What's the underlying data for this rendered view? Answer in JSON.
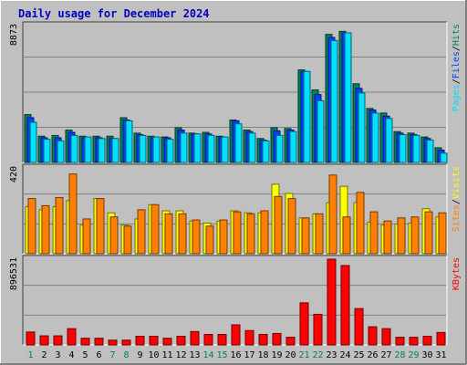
{
  "colors": {
    "background": "#C0C0C0",
    "panel": "#C0C0C0",
    "title": "#0000C0",
    "hits": "#00805C",
    "files": "#0040FF",
    "pages": "#00E0FF",
    "visits": "#FFFF00",
    "sites": "#FF8000",
    "kbytes": "#FF0000",
    "weekend_day": "#00805C",
    "weekday": "#000000"
  },
  "chart_data": {
    "type": "bar",
    "title": "Daily usage for December 2024",
    "categories": [
      "1",
      "2",
      "3",
      "4",
      "5",
      "6",
      "7",
      "8",
      "9",
      "10",
      "11",
      "12",
      "13",
      "14",
      "15",
      "16",
      "17",
      "18",
      "19",
      "20",
      "21",
      "22",
      "23",
      "24",
      "25",
      "26",
      "27",
      "28",
      "29",
      "30",
      "31"
    ],
    "weekend_days": [
      1,
      7,
      8,
      14,
      15,
      21,
      22,
      28,
      29
    ],
    "panels": [
      {
        "id": "hits",
        "ymax_label": "8873",
        "ymax": 8873,
        "legend": [
          {
            "text": "Pages",
            "color": "#00E0FF"
          },
          {
            "text": "/",
            "color": "#000000"
          },
          {
            "text": "Files",
            "color": "#0040FF"
          },
          {
            "text": "/",
            "color": "#000000"
          },
          {
            "text": "Hits",
            "color": "#00805C"
          }
        ],
        "series": [
          {
            "name": "Hits",
            "color": "#00805C",
            "values": [
              3100,
              1700,
              1750,
              2100,
              1700,
              1700,
              1700,
              2900,
              1900,
              1700,
              1650,
              2250,
              1900,
              1950,
              1700,
              2750,
              2100,
              1550,
              2250,
              2200,
              6000,
              4700,
              8300,
              8500,
              5100,
              3500,
              3200,
              2000,
              1900,
              1650,
              950
            ]
          },
          {
            "name": "Files",
            "color": "#0040FF",
            "values": [
              2900,
              1600,
              1600,
              1950,
              1600,
              1600,
              1550,
              2750,
              1800,
              1600,
              1600,
              2100,
              1850,
              1850,
              1650,
              2700,
              2000,
              1450,
              2050,
              2100,
              5900,
              4400,
              8100,
              8400,
              4800,
              3400,
              3000,
              1900,
              1800,
              1550,
              800
            ]
          },
          {
            "name": "Pages",
            "color": "#00E0FF",
            "values": [
              2600,
              1500,
              1400,
              1750,
              1650,
              1550,
              1550,
              2700,
              1750,
              1650,
              1500,
              1900,
              1850,
              1750,
              1650,
              2500,
              1900,
              1400,
              1750,
              2000,
              5900,
              4000,
              7900,
              8400,
              4500,
              3200,
              2850,
              1800,
              1750,
              1450,
              600
            ]
          }
        ]
      },
      {
        "id": "visits",
        "ymax_label": "420",
        "ymax": 420,
        "legend": [
          {
            "text": "Sites",
            "color": "#FF8000"
          },
          {
            "text": "/",
            "color": "#000000"
          },
          {
            "text": "Visits",
            "color": "#FFFF00"
          }
        ],
        "series": [
          {
            "name": "Visits",
            "color": "#FFFF00",
            "values": [
              230,
              215,
              230,
              260,
              140,
              270,
              200,
              140,
              170,
              240,
              210,
              210,
              160,
              150,
              160,
              210,
              200,
              200,
              340,
              295,
              175,
              195,
              250,
              330,
              250,
              155,
              140,
              145,
              150,
              220,
              180
            ]
          },
          {
            "name": "Sites",
            "color": "#FF8000",
            "values": [
              270,
              235,
              275,
              390,
              170,
              270,
              180,
              135,
              215,
              240,
              195,
              195,
              165,
              135,
              165,
              205,
              195,
              210,
              280,
              270,
              175,
              195,
              385,
              180,
              300,
              205,
              160,
              175,
              180,
              205,
              200
            ]
          }
        ]
      },
      {
        "id": "kbytes",
        "ymax_label": "896531",
        "ymax": 896531,
        "legend": [
          {
            "text": "KBytes",
            "color": "#FF0000"
          }
        ],
        "series": [
          {
            "name": "KBytes",
            "color": "#FF0000",
            "values": [
              135000,
              95000,
              95000,
              170000,
              70000,
              70000,
              50000,
              50000,
              90000,
              90000,
              70000,
              90000,
              140000,
              110000,
              110000,
              210000,
              150000,
              110000,
              120000,
              80000,
              440000,
              320000,
              896531,
              830000,
              380000,
              190000,
              170000,
              80000,
              80000,
              90000,
              130000
            ]
          }
        ]
      }
    ]
  }
}
